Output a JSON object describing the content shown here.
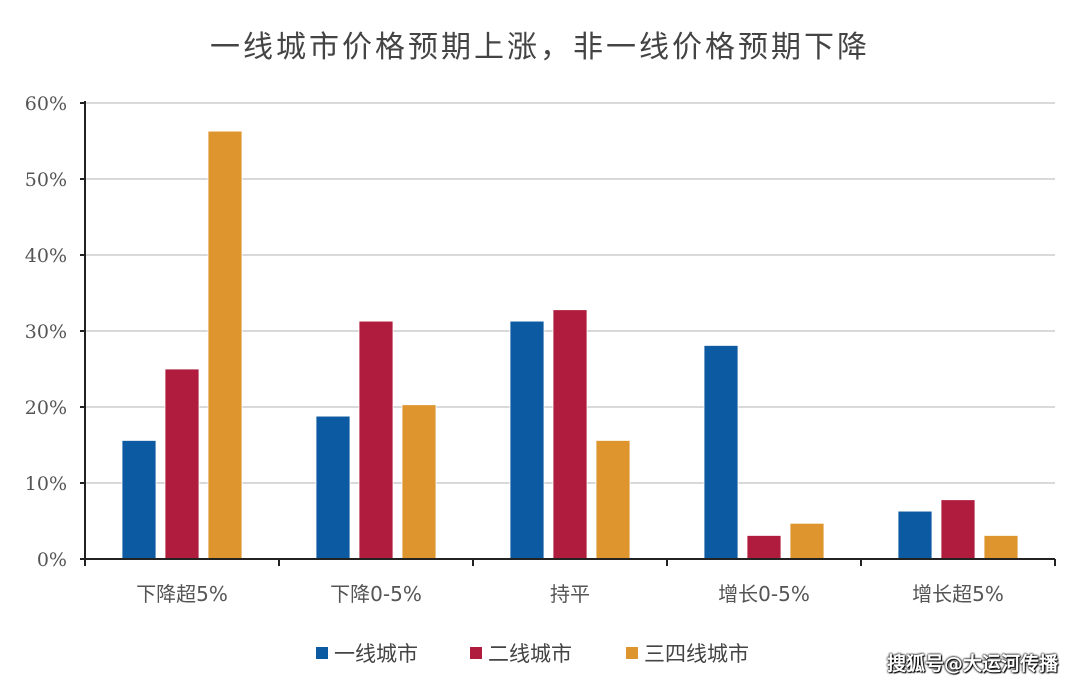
{
  "chart_data": {
    "type": "bar",
    "title": "一线城市价格预期上涨，非一线价格预期下降",
    "categories": [
      "下降超5%",
      "下降0-5%",
      "持平",
      "增长0-5%",
      "增长超5%"
    ],
    "series": [
      {
        "name": "一线城市",
        "color": "#0b5aa2",
        "values": [
          15.6,
          18.8,
          31.3,
          28.1,
          6.3
        ]
      },
      {
        "name": "二线城市",
        "color": "#b01c3e",
        "values": [
          25.0,
          31.3,
          32.8,
          3.1,
          7.8
        ]
      },
      {
        "name": "三四线城市",
        "color": "#df952e",
        "values": [
          56.3,
          20.3,
          15.6,
          4.7,
          3.1
        ]
      }
    ],
    "ylim": [
      0,
      60
    ],
    "yticks": [
      "0%",
      "10%",
      "20%",
      "30%",
      "40%",
      "50%",
      "60%"
    ],
    "grid": true,
    "legend_position": "bottom",
    "xlabel": "",
    "ylabel": ""
  },
  "watermark": "搜狐号@大运河传播"
}
